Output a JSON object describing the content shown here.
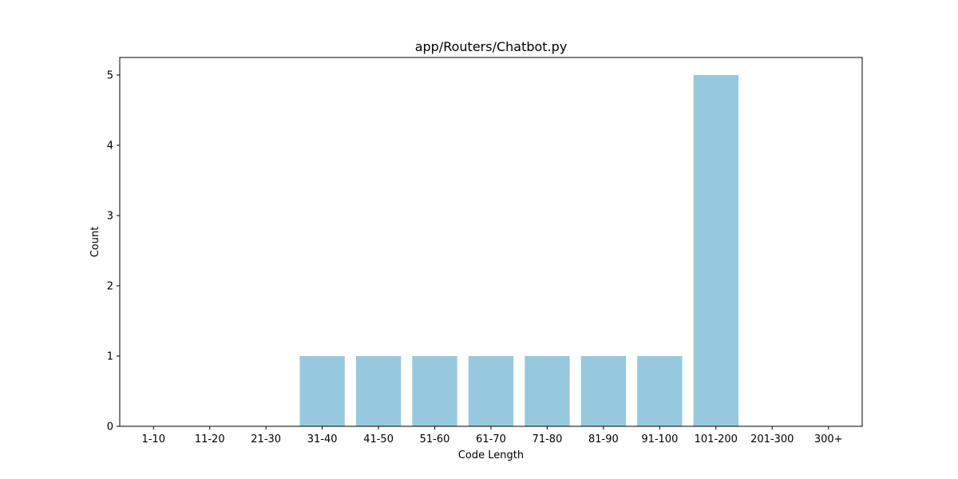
{
  "chart_data": {
    "type": "bar",
    "title": "app/Routers/Chatbot.py",
    "xlabel": "Code Length",
    "ylabel": "Count",
    "categories": [
      "1-10",
      "11-20",
      "21-30",
      "31-40",
      "41-50",
      "51-60",
      "61-70",
      "71-80",
      "81-90",
      "91-100",
      "101-200",
      "201-300",
      "300+"
    ],
    "values": [
      0,
      0,
      0,
      1,
      1,
      1,
      1,
      1,
      1,
      1,
      5,
      0,
      0
    ],
    "ylim": [
      0,
      5.25
    ],
    "yticks": [
      0,
      1,
      2,
      3,
      4,
      5
    ],
    "grid": false,
    "bar_color": "#96c9dd"
  }
}
